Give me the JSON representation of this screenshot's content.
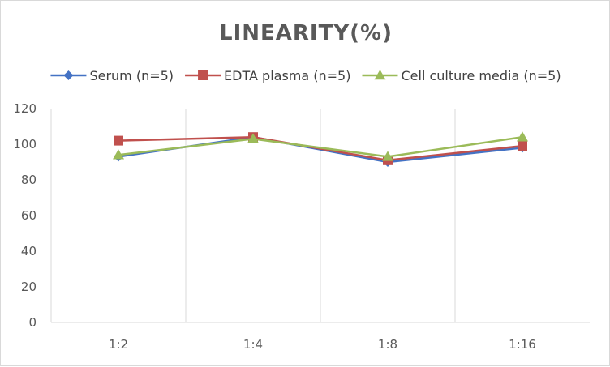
{
  "chart_data": {
    "type": "line",
    "title": "LINEARITY(%)",
    "categories": [
      "1:2",
      "1:4",
      "1:8",
      "1:16"
    ],
    "ylim": [
      0,
      120
    ],
    "yticks": [
      0,
      20,
      40,
      60,
      80,
      100,
      120
    ],
    "grid": "vertical",
    "legend_position": "top",
    "series": [
      {
        "name": "Serum (n=5)",
        "values": [
          93,
          104,
          90,
          98
        ],
        "color": "#4472c4",
        "marker": "diamond"
      },
      {
        "name": "EDTA plasma (n=5)",
        "values": [
          102,
          104,
          91,
          99
        ],
        "color": "#c0504d",
        "marker": "square"
      },
      {
        "name": "Cell culture media (n=5)",
        "values": [
          94,
          103,
          93,
          104
        ],
        "color": "#9bbb59",
        "marker": "triangle"
      }
    ]
  }
}
